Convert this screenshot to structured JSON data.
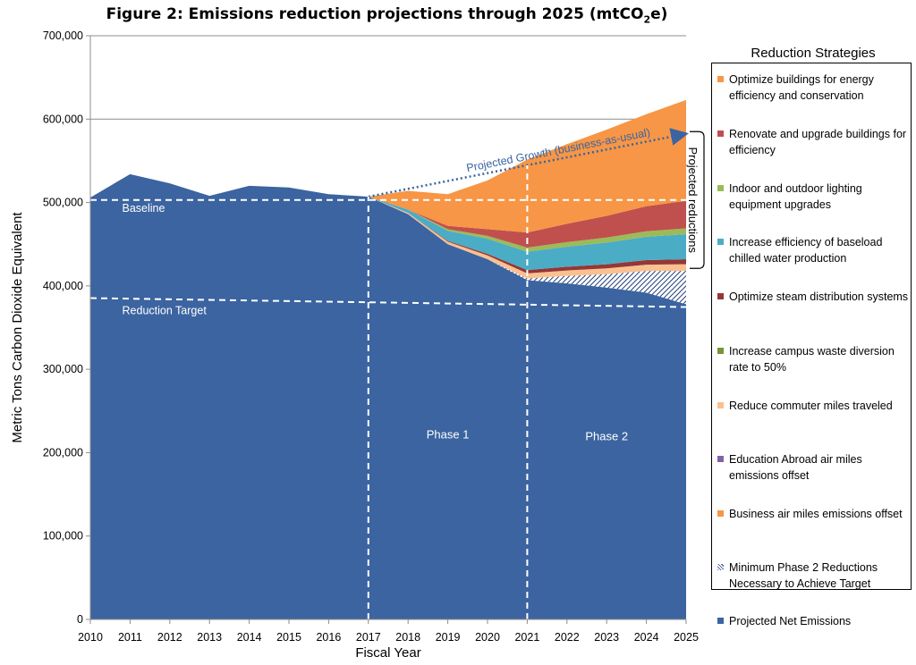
{
  "figure": {
    "title_main": "Figure 2: Emissions reduction projections through 2025 (mtCO",
    "title_sub": "2",
    "title_end": "e)"
  },
  "chart_data": {
    "type": "area",
    "title": "Figure 2: Emissions reduction projections through 2025 (mtCO2e)",
    "xlabel": "Fiscal Year",
    "ylabel": "Metric Tons Carbon Dioxide Equivalent",
    "ylim": [
      0,
      700000
    ],
    "yticks": [
      0,
      100000,
      200000,
      300000,
      400000,
      500000,
      600000,
      700000
    ],
    "ytick_labels": [
      "0",
      "100,000",
      "200,000",
      "300,000",
      "400,000",
      "500,000",
      "600,000",
      "700,000"
    ],
    "x": [
      2010,
      2011,
      2012,
      2013,
      2014,
      2015,
      2016,
      2017,
      2018,
      2019,
      2020,
      2021,
      2022,
      2023,
      2024,
      2025
    ],
    "grid": "horizontal",
    "legend_position": "right",
    "legend_title": "Reduction Strategies",
    "net_emissions": {
      "name": "Projected Net Emissions",
      "color": "#3b64a0",
      "points": [
        [
          2010,
          506000
        ],
        [
          2011,
          534000
        ],
        [
          2012,
          523000
        ],
        [
          2013,
          508000
        ],
        [
          2014,
          520000
        ],
        [
          2015,
          518000
        ],
        [
          2016,
          510000
        ],
        [
          2017,
          507000
        ],
        [
          2018,
          486000
        ],
        [
          2019,
          450000
        ],
        [
          2020,
          432000
        ],
        [
          2021,
          407000
        ],
        [
          2022,
          403000
        ],
        [
          2023,
          398000
        ],
        [
          2024,
          392000
        ],
        [
          2025,
          378000
        ]
      ]
    },
    "stacked_x": [
      2017,
      2018,
      2019,
      2020,
      2021,
      2022,
      2023,
      2024,
      2025
    ],
    "stacked_series": [
      {
        "name": "Minimum Phase 2 Reductions Necessary to Achieve Target",
        "color": "#1f3c78",
        "pattern": "hatch",
        "values": [
          0,
          0,
          0,
          0,
          2000,
          9000,
          16000,
          26000,
          40000
        ]
      },
      {
        "name": "Business air miles emissions offset",
        "color": "#f79646",
        "values": [
          0,
          0,
          0,
          0,
          0,
          0,
          0,
          0,
          0
        ]
      },
      {
        "name": "Education Abroad air miles emissions offset",
        "color": "#8064a2",
        "values": [
          0,
          0,
          0,
          0,
          0,
          0,
          0,
          0,
          0
        ]
      },
      {
        "name": "Reduce commuter miles traveled",
        "color": "#fac090",
        "values": [
          0,
          1500,
          3000,
          4500,
          6000,
          6500,
          7000,
          7500,
          8000
        ]
      },
      {
        "name": "Increase campus waste diversion rate to 50%",
        "color": "#77933c",
        "values": [
          0,
          0,
          0,
          0,
          0,
          0,
          0,
          0,
          0
        ]
      },
      {
        "name": "Optimize steam distribution systems",
        "color": "#953735",
        "values": [
          0,
          0,
          1000,
          2000,
          4000,
          4500,
          5000,
          5500,
          6000
        ]
      },
      {
        "name": "Increase efficiency of baseload chilled water production",
        "color": "#4bacc6",
        "values": [
          0,
          4000,
          12000,
          18000,
          22000,
          24000,
          26000,
          28000,
          30000
        ]
      },
      {
        "name": "Indoor and outdoor lighting equipment upgrades",
        "color": "#9bbb59",
        "values": [
          0,
          0,
          2000,
          3500,
          5000,
          5500,
          6000,
          6500,
          7000
        ]
      },
      {
        "name": "Renovate and upgrade buildings for efficiency",
        "color": "#c0504d",
        "values": [
          0,
          0,
          4000,
          8000,
          18000,
          22000,
          26000,
          30000,
          33000
        ]
      },
      {
        "name": "Optimize buildings for energy efficiency and conservation",
        "color": "#f79646",
        "values": [
          0,
          22500,
          38000,
          58500,
          87500,
          95500,
          103500,
          110500,
          121000
        ]
      }
    ],
    "projected_growth": {
      "label": "Projected Growth (business-as-usual)",
      "points": [
        [
          2017,
          507000
        ],
        [
          2025,
          582000
        ]
      ],
      "color": "#3b64a0"
    },
    "baseline": {
      "label": "Baseline",
      "value": 503000
    },
    "reduction_target": {
      "label": "Reduction Target",
      "value": 380000
    },
    "phase_dividers": [
      2017,
      2021
    ],
    "phases": [
      {
        "label": "Phase 1",
        "x": 2019,
        "y": 217000
      },
      {
        "label": "Phase 2",
        "x": 2023,
        "y": 215000
      }
    ],
    "bracket_label": "Projected reductions"
  },
  "legend": {
    "title": "Reduction Strategies",
    "items": [
      {
        "label": "Optimize buildings for energy efficiency and conservation",
        "color": "#f79646"
      },
      {
        "label": "Renovate and upgrade buildings for efficiency",
        "color": "#c0504d"
      },
      {
        "label": "Indoor and outdoor lighting equipment upgrades",
        "color": "#9bbb59"
      },
      {
        "label": " Increase efficiency of baseload chilled water production",
        "color": "#4bacc6"
      },
      {
        "label": "Optimize steam distribution systems",
        "color": "#953735"
      },
      {
        "label": " Increase campus waste diversion rate to 50%",
        "color": "#77933c"
      },
      {
        "label": "Reduce commuter miles traveled",
        "color": "#fac090"
      },
      {
        "label": " Education Abroad air miles emissions offset",
        "color": "#8064a2"
      },
      {
        "label": " Business air miles emissions offset",
        "color": "#f79646"
      },
      {
        "label": "Minimum Phase 2 Reductions Necessary to Achieve Target",
        "color": "#1f3c78",
        "pattern": "hatch"
      },
      {
        "label": "Projected Net Emissions",
        "color": "#3b64a0"
      }
    ]
  }
}
